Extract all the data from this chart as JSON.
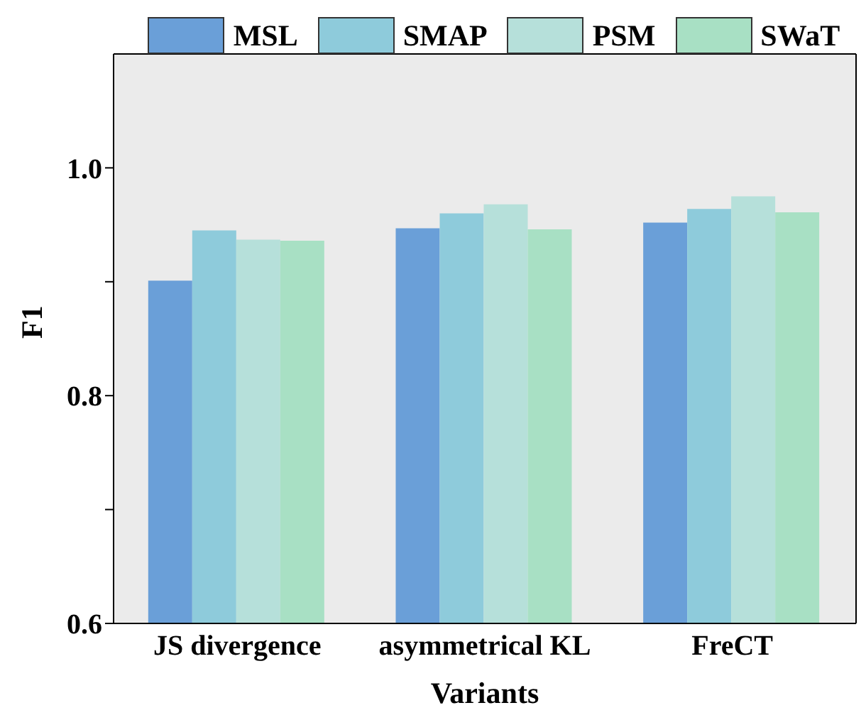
{
  "chart_data": {
    "type": "bar",
    "xlabel": "Variants",
    "ylabel": "F1",
    "categories": [
      "JS divergence",
      "asymmetrical KL",
      "FreCT"
    ],
    "series": [
      {
        "name": "MSL",
        "color": "#6a9fd8",
        "values": [
          0.901,
          0.947,
          0.952
        ]
      },
      {
        "name": "SMAP",
        "color": "#8ecbdb",
        "values": [
          0.945,
          0.96,
          0.964
        ]
      },
      {
        "name": "PSM",
        "color": "#b6e0da",
        "values": [
          0.937,
          0.968,
          0.975
        ]
      },
      {
        "name": "SWaT",
        "color": "#a8e0c4",
        "values": [
          0.936,
          0.946,
          0.961
        ]
      }
    ],
    "ylim": [
      0.6,
      1.1
    ],
    "yticks": [
      {
        "value": 0.6,
        "label": "0.6"
      },
      {
        "value": 0.7,
        "label": null
      },
      {
        "value": 0.8,
        "label": "0.8"
      },
      {
        "value": 0.9,
        "label": null
      },
      {
        "value": 1,
        "label": "1.0"
      }
    ],
    "grid": false,
    "legend": "top"
  }
}
